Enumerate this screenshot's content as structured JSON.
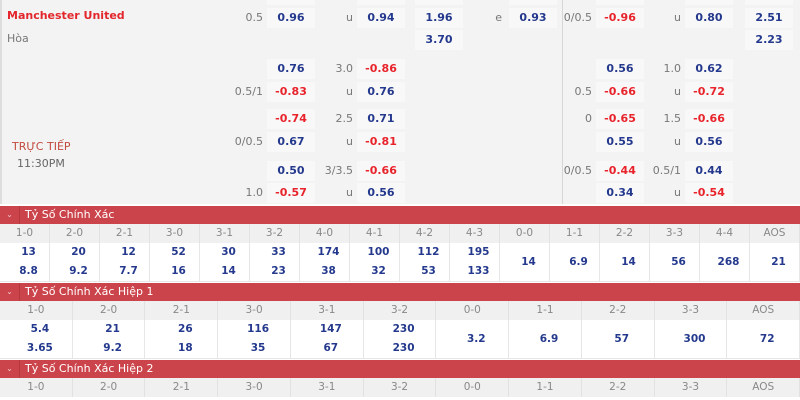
{
  "match": {
    "home_team": "Manchester United",
    "draw_label": "Hòa",
    "status": "TRỰC TIẾP",
    "time": "11:30PM"
  },
  "colors": {
    "header_red": "#cc444b",
    "positive_odds": "#24398d",
    "negative_odds": "#e8232b",
    "team_red": "#e3262b"
  },
  "odds_rows": [
    {
      "hcap": "",
      "h": "",
      "ou": "",
      "o": "",
      "x12": "",
      "el": "",
      "e": "",
      "hcap2": "",
      "h2": "",
      "ou2": "",
      "o2": "",
      "x12b": "",
      "partial": true
    },
    {
      "hcap": "0.5",
      "h": "0.96",
      "ou": "u",
      "o": "0.94",
      "x12": "1.96",
      "el": "e",
      "e": "0.93",
      "hcap2": "0/0.5",
      "h2": "-0.96",
      "ou2": "u",
      "o2": "0.80",
      "x12b": "2.51"
    },
    {
      "x12": "3.70",
      "x12b": "2.23"
    },
    {
      "h": "0.76",
      "ou": "3.0",
      "o": "-0.86",
      "h2": "0.56",
      "ou2": "1.0",
      "o2": "0.62"
    },
    {
      "hcap": "0.5/1",
      "h": "-0.83",
      "ou": "u",
      "o": "0.76",
      "hcap2": "0.5",
      "h2": "-0.66",
      "ou2": "u",
      "o2": "-0.72"
    },
    {
      "h": "-0.74",
      "ou": "2.5",
      "o": "0.71",
      "hcap2": "0",
      "h2": "-0.65",
      "ou2": "1.5",
      "o2": "-0.66"
    },
    {
      "hcap": "0/0.5",
      "h": "0.67",
      "ou": "u",
      "o": "-0.81",
      "h2": "0.55",
      "ou2": "u",
      "o2": "0.56"
    },
    {
      "h": "0.50",
      "ou": "3/3.5",
      "o": "-0.66",
      "hcap2": "0/0.5",
      "h2": "-0.44",
      "ou2": "0.5/1",
      "o2": "0.44"
    },
    {
      "hcap": "1.0",
      "h": "-0.57",
      "ou": "u",
      "o": "0.56",
      "h2": "0.34",
      "ou2": "u",
      "o2": "-0.54"
    }
  ],
  "sections": [
    {
      "title": "Tỷ Số Chính Xác",
      "headers": [
        "1-0",
        "2-0",
        "2-1",
        "3-0",
        "3-1",
        "3-2",
        "4-0",
        "4-1",
        "4-2",
        "4-3",
        "0-0",
        "1-1",
        "2-2",
        "3-3",
        "4-4",
        "AOS"
      ],
      "values": [
        [
          "13",
          "8.8"
        ],
        [
          "20",
          "9.2"
        ],
        [
          "12",
          "7.7"
        ],
        [
          "52",
          "16"
        ],
        [
          "30",
          "14"
        ],
        [
          "33",
          "23"
        ],
        [
          "174",
          "38"
        ],
        [
          "100",
          "32"
        ],
        [
          "112",
          "53"
        ],
        [
          "195",
          "133"
        ],
        [
          "14"
        ],
        [
          "6.9"
        ],
        [
          "14"
        ],
        [
          "56"
        ],
        [
          "268"
        ],
        [
          "21"
        ]
      ]
    },
    {
      "title": "Tỷ Số Chính Xác Hiệp 1",
      "headers": [
        "1-0",
        "2-0",
        "2-1",
        "3-0",
        "3-1",
        "3-2",
        "0-0",
        "1-1",
        "2-2",
        "3-3",
        "AOS"
      ],
      "values": [
        [
          "5.4",
          "3.65"
        ],
        [
          "21",
          "9.2"
        ],
        [
          "26",
          "18"
        ],
        [
          "116",
          "35"
        ],
        [
          "147",
          "67"
        ],
        [
          "230",
          "230"
        ],
        [
          "3.2"
        ],
        [
          "6.9"
        ],
        [
          "57"
        ],
        [
          "300"
        ],
        [
          "72"
        ]
      ]
    },
    {
      "title": "Tỷ Số Chính Xác Hiệp 2",
      "headers": [
        "1-0",
        "2-0",
        "2-1",
        "3-0",
        "3-1",
        "3-2",
        "0-0",
        "1-1",
        "2-2",
        "3-3",
        "AOS"
      ],
      "values": []
    }
  ]
}
